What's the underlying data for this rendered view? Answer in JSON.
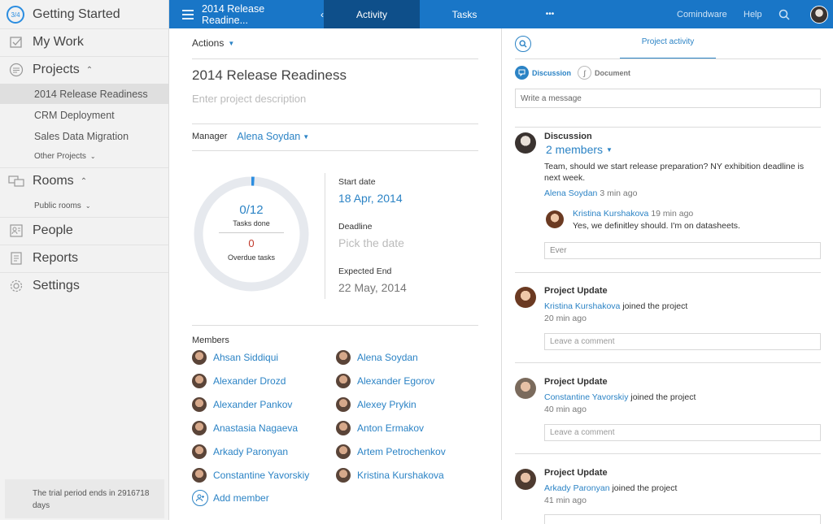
{
  "sidebar": {
    "getting_started": {
      "badge": "3/4",
      "label": "Getting Started"
    },
    "my_work": "My Work",
    "projects": "Projects",
    "projects_caret": "⌃",
    "project_items": [
      "2014 Release Readiness",
      "CRM Deployment",
      "Sales Data Migration"
    ],
    "other_projects": "Other Projects",
    "rooms": "Rooms",
    "public_rooms": "Public rooms",
    "people": "People",
    "reports": "Reports",
    "settings": "Settings",
    "trial": "The trial period ends in 2916718 days"
  },
  "topbar": {
    "project_title": "2014 Release Readine...",
    "tab_activity": "Activity",
    "tab_tasks": "Tasks",
    "more": "•••",
    "company": "Comindware",
    "help": "Help"
  },
  "main": {
    "actions": "Actions",
    "title": "2014 Release Readiness",
    "description_placeholder": "Enter project description",
    "manager_label": "Manager",
    "manager_name": "Alena Soydan",
    "progress": {
      "tasks_done_value": "0/12",
      "tasks_done_label": "Tasks done",
      "overdue_value": "0",
      "overdue_label": "Overdue tasks"
    },
    "start_date_label": "Start date",
    "start_date": "18 Apr, 2014",
    "deadline_label": "Deadline",
    "deadline_placeholder": "Pick the date",
    "expected_end_label": "Expected End",
    "expected_end": "22 May, 2014",
    "members_label": "Members",
    "members_left": [
      "Ahsan Siddiqui",
      "Alexander Drozd",
      "Alexander Pankov",
      "Anastasia Nagaeva",
      "Arkady Paronyan",
      "Constantine Yavorskiy"
    ],
    "members_right": [
      "Alena Soydan",
      "Alexander Egorov",
      "Alexey Prykin",
      "Anton Ermakov",
      "Artem Petrochenkov",
      "Kristina Kurshakova"
    ],
    "add_member": "Add member"
  },
  "right": {
    "tab_project_activity": "Project activity",
    "discussion_tab": "Discussion",
    "document_tab": "Document",
    "message_placeholder": "Write a message",
    "discussion": {
      "title": "Discussion",
      "members": "2 members",
      "text": "Team, should we start release preparation? NY exhibition deadline is next week.",
      "author": "Alena Soydan",
      "time": "3 min ago",
      "reply_author": "Kristina Kurshakova",
      "reply_time": "19 min ago",
      "reply_text": "Yes, we definitley should. I'm on datasheets.",
      "reply_input": "Ever"
    },
    "updates": [
      {
        "title": "Project Update",
        "person": "Kristina Kurshakova",
        "action": "joined the project",
        "time": "20 min ago",
        "comment_placeholder": "Leave a comment"
      },
      {
        "title": "Project Update",
        "person": "Constantine Yavorskiy",
        "action": "joined the project",
        "time": "40 min ago",
        "comment_placeholder": "Leave a comment"
      },
      {
        "title": "Project Update",
        "person": "Arkady Paronyan",
        "action": "joined the project",
        "time": "41 min ago"
      }
    ]
  },
  "colors": {
    "accent": "#1976c7",
    "active_tab": "#0e4f8a",
    "link": "#2b83c5",
    "overdue": "#c0392b"
  }
}
